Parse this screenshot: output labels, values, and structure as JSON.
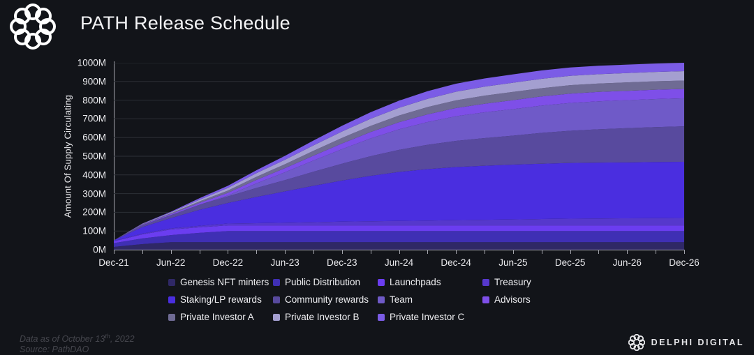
{
  "header": {
    "title": "PATH Release Schedule",
    "logo": "pathdao-knot-logo"
  },
  "chart_data": {
    "type": "area",
    "stacked": true,
    "title": "PATH Release Schedule",
    "ylabel": "Amount Of Supply Circulating",
    "unit": "M",
    "ylim": [
      0,
      1000
    ],
    "grid": "horizontal",
    "legend_position": "bottom",
    "y_ticks": [
      "0M",
      "100M",
      "200M",
      "300M",
      "400M",
      "500M",
      "600M",
      "700M",
      "800M",
      "900M",
      "1000M"
    ],
    "x_tick_labels": [
      "Dec-21",
      "Jun-22",
      "Dec-22",
      "Jun-23",
      "Dec-23",
      "Jun-24",
      "Dec-24",
      "Jun-25",
      "Dec-25",
      "Jun-26",
      "Dec-26"
    ],
    "x": [
      "Dec-21",
      "Mar-22",
      "Jun-22",
      "Sep-22",
      "Dec-22",
      "Mar-23",
      "Jun-23",
      "Sep-23",
      "Dec-23",
      "Mar-24",
      "Jun-24",
      "Sep-24",
      "Dec-24",
      "Mar-25",
      "Jun-25",
      "Sep-25",
      "Dec-25",
      "Mar-26",
      "Jun-26",
      "Sep-26",
      "Dec-26"
    ],
    "series": [
      {
        "name": "Genesis NFT minters",
        "color": "#2f2866",
        "values": [
          15,
          30,
          40,
          40,
          40,
          40,
          40,
          40,
          40,
          40,
          40,
          40,
          40,
          40,
          40,
          40,
          40,
          40,
          40,
          40,
          40
        ]
      },
      {
        "name": "Public Distribution",
        "color": "#3f2fb4",
        "values": [
          20,
          30,
          38,
          50,
          60,
          60,
          60,
          60,
          60,
          60,
          60,
          60,
          60,
          60,
          60,
          60,
          60,
          60,
          60,
          60,
          60
        ]
      },
      {
        "name": "Launchpads",
        "color": "#6b3df0",
        "values": [
          10,
          22,
          30,
          30,
          30,
          30,
          30,
          30,
          30,
          30,
          30,
          30,
          30,
          30,
          30,
          30,
          30,
          30,
          30,
          30,
          30
        ]
      },
      {
        "name": "Treasury",
        "color": "#5638cc",
        "values": [
          2,
          4,
          6,
          8,
          10,
          12,
          14,
          17,
          20,
          22,
          24,
          26,
          28,
          30,
          32,
          34,
          36,
          37,
          38,
          39,
          40
        ]
      },
      {
        "name": "Staking/LP rewards",
        "color": "#4a2ee0",
        "values": [
          3,
          35,
          55,
          85,
          110,
          140,
          168,
          195,
          220,
          243,
          262,
          275,
          284,
          289,
          293,
          296,
          298,
          299,
          299,
          300,
          300
        ]
      },
      {
        "name": "Community rewards",
        "color": "#584a9e",
        "values": [
          0,
          10,
          16,
          27,
          35,
          48,
          60,
          75,
          90,
          105,
          118,
          130,
          140,
          148,
          155,
          165,
          172,
          178,
          183,
          187,
          190
        ]
      },
      {
        "name": "Team",
        "color": "#6f5ac8",
        "values": [
          0,
          0,
          0,
          0,
          5,
          25,
          42,
          60,
          78,
          95,
          110,
          122,
          132,
          138,
          142,
          146,
          149,
          150,
          150,
          150,
          150
        ]
      },
      {
        "name": "Advisors",
        "color": "#7e4fe8",
        "values": [
          0,
          3,
          6,
          10,
          14,
          18,
          22,
          26,
          30,
          34,
          38,
          41,
          44,
          46,
          48,
          49,
          50,
          50,
          50,
          50,
          50
        ]
      },
      {
        "name": "Private Investor A",
        "color": "#6f6b94",
        "values": [
          0,
          2,
          4,
          8,
          12,
          17,
          21,
          26,
          30,
          33,
          36,
          39,
          41,
          43,
          44,
          44,
          45,
          45,
          45,
          45,
          45
        ]
      },
      {
        "name": "Private Investor B",
        "color": "#a49fd0",
        "values": [
          0,
          2,
          4,
          9,
          14,
          19,
          24,
          29,
          34,
          38,
          41,
          44,
          46,
          48,
          49,
          50,
          50,
          50,
          50,
          50,
          50
        ]
      },
      {
        "name": "Private Investor C",
        "color": "#7b5ce6",
        "values": [
          0,
          2,
          4,
          8,
          12,
          16,
          21,
          26,
          31,
          35,
          38,
          41,
          43,
          44,
          45,
          45,
          45,
          45,
          45,
          45,
          45
        ]
      }
    ]
  },
  "legend": {
    "items": [
      {
        "label": "Genesis NFT minters",
        "color": "#2f2866"
      },
      {
        "label": "Public Distribution",
        "color": "#3f2fb4"
      },
      {
        "label": "Launchpads",
        "color": "#6b3df0"
      },
      {
        "label": "Treasury",
        "color": "#5638cc"
      },
      {
        "label": "Staking/LP rewards",
        "color": "#4a2ee0"
      },
      {
        "label": "Community rewards",
        "color": "#584a9e"
      },
      {
        "label": "Team",
        "color": "#6f5ac8"
      },
      {
        "label": "Advisors",
        "color": "#7e4fe8"
      },
      {
        "label": "Private Investor A",
        "color": "#6f6b94"
      },
      {
        "label": "Private Investor B",
        "color": "#a49fd0"
      },
      {
        "label": "Private Investor C",
        "color": "#7b5ce6"
      }
    ]
  },
  "footer": {
    "note_prefix": "Data as of October 13",
    "note_sup": "th",
    "note_suffix": ", 2022",
    "note_line2": "Source: PathDAO",
    "brand": "DELPHI DIGITAL"
  },
  "colors": {
    "background": "#121419",
    "gridline": "#2c2f36",
    "axis": "#a4a5ad",
    "text": "#f1f1f3",
    "footnote": "#45464d"
  }
}
